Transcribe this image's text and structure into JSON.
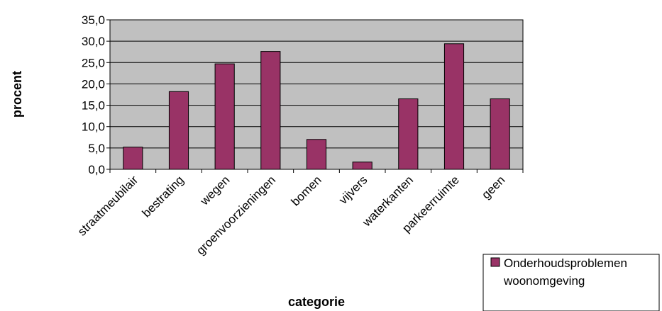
{
  "chart_data": {
    "type": "bar",
    "categories": [
      "straatmeubilair",
      "bestrating",
      "wegen",
      "groenvoorzieningen",
      "bomen",
      "vijvers",
      "waterkanten",
      "parkeerruimte",
      "geen"
    ],
    "series": [
      {
        "name": "Onderhoudsproblemen woonomgeving",
        "name_lines": [
          "Onderhoudsproblemen",
          "woonomgeving"
        ],
        "values": [
          5.2,
          18.2,
          24.7,
          27.6,
          7.0,
          1.7,
          16.5,
          29.4,
          16.5
        ],
        "color": "#993366"
      }
    ],
    "xlabel": "categorie",
    "ylabel": "procent",
    "ylim": [
      0,
      35
    ],
    "yticks": [
      "0,0",
      "5,0",
      "10,0",
      "15,0",
      "20,0",
      "25,0",
      "30,0",
      "35,0"
    ],
    "grid": true,
    "plot_background": "#c0c0c0",
    "legend_position": "bottom-right"
  }
}
